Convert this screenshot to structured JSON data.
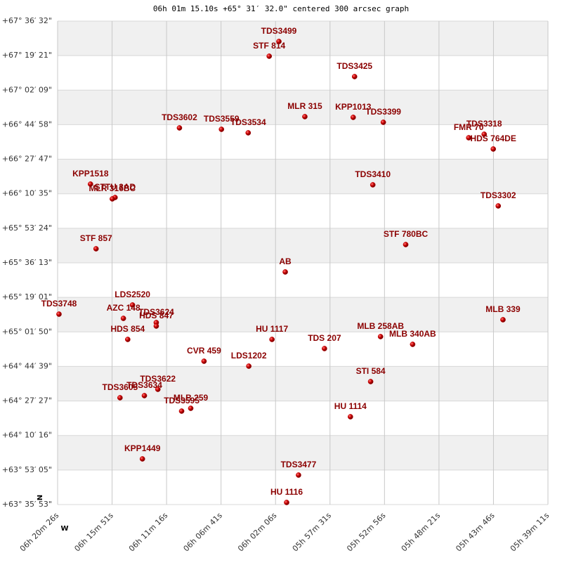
{
  "chart_data": {
    "type": "scatter",
    "title": "06h 01m 15.10s +65° 31′ 32.0\" centered 300 arcsec graph",
    "xlim": [
      22826,
      20351
    ],
    "ylim": [
      228953,
      243392
    ],
    "xticks": [
      {
        "value": 22826,
        "label": "06h 20m 26s"
      },
      {
        "value": 22551,
        "label": "06h 15m 51s"
      },
      {
        "value": 22276,
        "label": "06h 11m 16s"
      },
      {
        "value": 22001,
        "label": "06h 06m 41s"
      },
      {
        "value": 21726,
        "label": "06h 02m 06s"
      },
      {
        "value": 21451,
        "label": "05h 57m 31s"
      },
      {
        "value": 21176,
        "label": "05h 52m 56s"
      },
      {
        "value": 20901,
        "label": "05h 48m 21s"
      },
      {
        "value": 20626,
        "label": "05h 43m 46s"
      },
      {
        "value": 20351,
        "label": "05h 39m 11s"
      }
    ],
    "yticks": [
      {
        "value": 243392,
        "label": "+67° 36′ 32\""
      },
      {
        "value": 242361,
        "label": "+67° 19′ 21\""
      },
      {
        "value": 241329,
        "label": "+67° 02′ 09\""
      },
      {
        "value": 240298,
        "label": "+66° 44′ 58\""
      },
      {
        "value": 239267,
        "label": "+66° 27′ 47\""
      },
      {
        "value": 238235,
        "label": "+66° 10′ 35\""
      },
      {
        "value": 237204,
        "label": "+65° 53′ 24\""
      },
      {
        "value": 236173,
        "label": "+65° 36′ 13\""
      },
      {
        "value": 235141,
        "label": "+65° 19′ 01\""
      },
      {
        "value": 234110,
        "label": "+65° 01′ 50\""
      },
      {
        "value": 233079,
        "label": "+64° 44′ 39\""
      },
      {
        "value": 232047,
        "label": "+64° 27′ 27\""
      },
      {
        "value": 231016,
        "label": "+64° 10′ 16\""
      },
      {
        "value": 229985,
        "label": "+63° 53′ 05\""
      },
      {
        "value": 228953,
        "label": "+63° 35′ 53\""
      }
    ],
    "grid": true,
    "north_label": "N",
    "west_label": "W",
    "series": [
      {
        "color": "#c00000",
        "x": [
          21709,
          21758,
          21327,
          21578,
          21334,
          21182,
          22211,
          21999,
          21864,
          20673,
          20751,
          20627,
          21235,
          20602,
          22660,
          22536,
          22550,
          22632,
          21069,
          21677,
          22448,
          22819,
          22494,
          22328,
          22328,
          22472,
          21744,
          20578,
          21196,
          21034,
          21479,
          22087,
          21861,
          21246,
          22320,
          22388,
          22511,
          22154,
          22200,
          21348,
          22398,
          21610,
          21670
        ],
        "values": [
          242783,
          242343,
          241734,
          240538,
          240517,
          240370,
          240202,
          240160,
          240055,
          240013,
          239908,
          239572,
          238502,
          237872,
          238523,
          238124,
          238082,
          236592,
          236718,
          235900,
          234913,
          234640,
          234514,
          234389,
          234284,
          233885,
          233885,
          234473,
          233969,
          233738,
          233612,
          233234,
          233087,
          232626,
          232395,
          232206,
          232143,
          231828,
          231744,
          231576,
          230317,
          229834,
          229016
        ],
        "point_labels": [
          "TDS3499",
          "STF 814",
          "TDS3425",
          "MLR 315",
          "KPP1013",
          "TDS3399",
          "TDS3602",
          "TDS3559",
          "TDS3534",
          "TDS3318",
          "FMR 70",
          "HDS 764DE",
          "TDS3410",
          "TDS3302",
          "KPP1518",
          "STTU 3AD",
          "MLR 316BC",
          "STF 857",
          "STF 780BC",
          "AB",
          "LDS2520",
          "TDS3748",
          "AZC 148",
          "TDS3624",
          "HDS 847",
          "HDS 854",
          "HU 1117",
          "MLB 339",
          "MLB 258AB",
          "MLB 340AB",
          "TDS 207",
          "CVR 459",
          "LDS1202",
          "STI 584",
          "TDS3622",
          "TDS3634",
          "TDS3605",
          "MLB 259",
          "TDS3595",
          "HU 1114",
          "KPP1449",
          "TDS3477",
          "HU 1116"
        ]
      }
    ]
  }
}
